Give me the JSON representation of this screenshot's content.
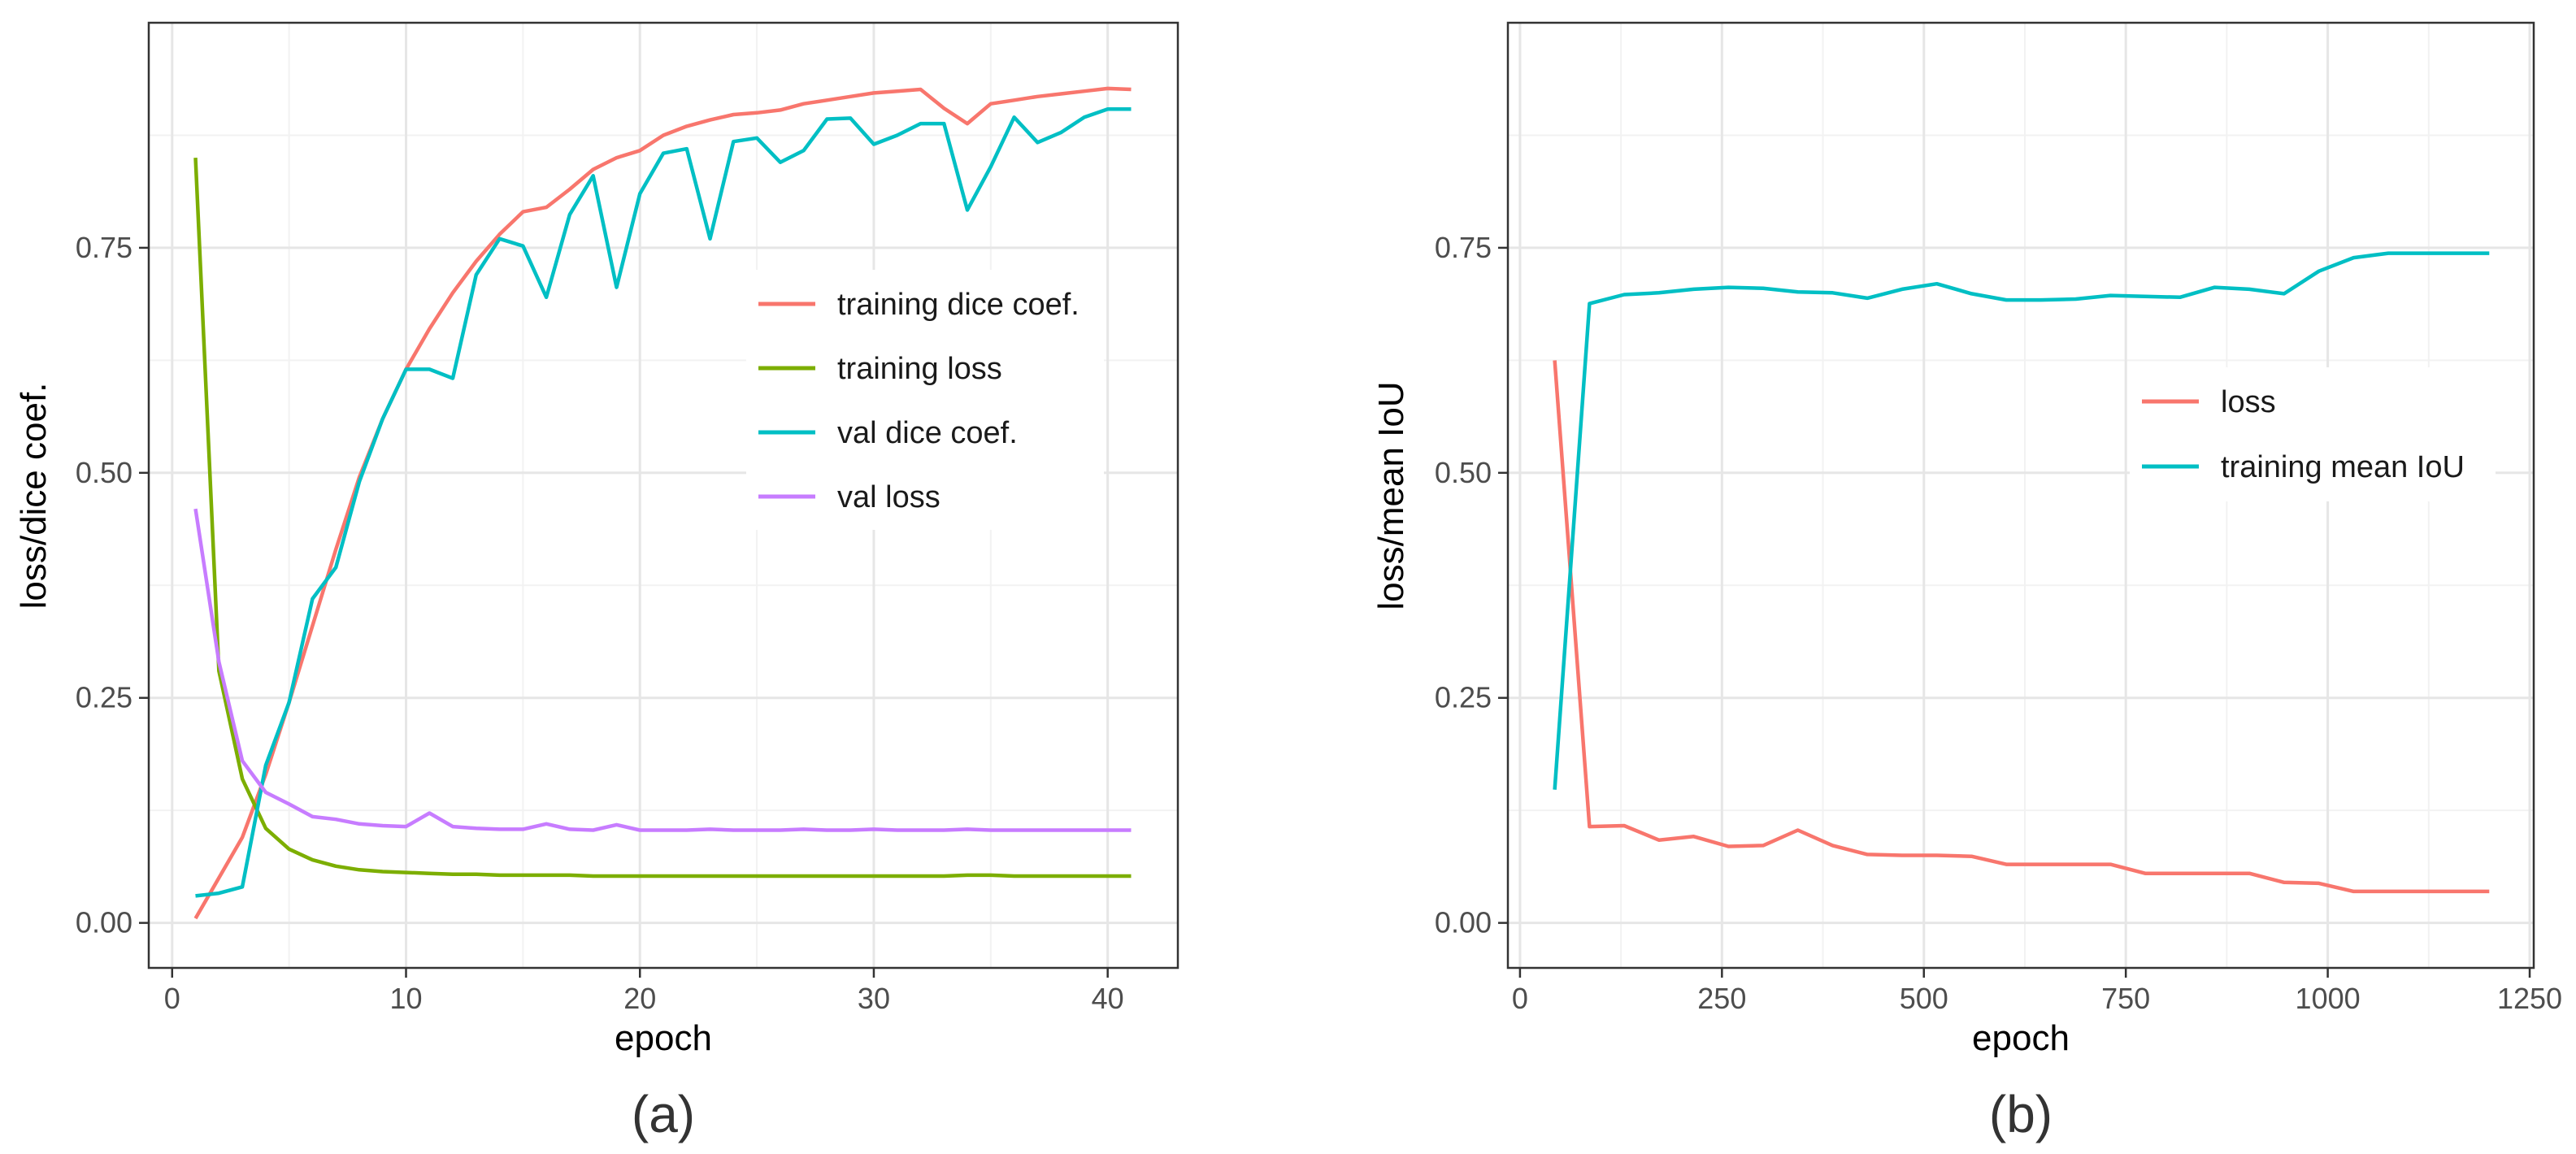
{
  "chart_data": [
    {
      "type": "line",
      "caption": "(a)",
      "xlabel": "epoch",
      "ylabel": "loss/dice coef.",
      "xlim": [
        -1,
        43
      ],
      "ylim": [
        -0.05,
        1.0
      ],
      "xticks": [
        0,
        10,
        20,
        30,
        40
      ],
      "xtick_labels": [
        "0",
        "10",
        "20",
        "30",
        "40"
      ],
      "yticks": [
        0.0,
        0.25,
        0.5,
        0.75
      ],
      "ytick_labels": [
        "0.00",
        "0.25",
        "0.50",
        "0.75"
      ],
      "legend_position": "center-right",
      "x": [
        1,
        2,
        3,
        4,
        5,
        6,
        7,
        8,
        9,
        10,
        11,
        12,
        13,
        14,
        15,
        16,
        17,
        18,
        19,
        20,
        21,
        22,
        23,
        24,
        25,
        26,
        27,
        28,
        29,
        30,
        31,
        32,
        33,
        34,
        35,
        36,
        37,
        38,
        39,
        40,
        41
      ],
      "series": [
        {
          "name": "training dice coef.",
          "color": "#F8766D",
          "values": [
            0.005,
            0.05,
            0.095,
            0.165,
            0.245,
            0.33,
            0.415,
            0.495,
            0.56,
            0.615,
            0.66,
            0.7,
            0.735,
            0.765,
            0.79,
            0.795,
            0.815,
            0.837,
            0.85,
            0.858,
            0.875,
            0.885,
            0.892,
            0.898,
            0.9,
            0.903,
            0.91,
            0.914,
            0.918,
            0.922,
            0.924,
            0.926,
            0.905,
            0.888,
            0.91,
            0.914,
            0.918,
            0.921,
            0.924,
            0.927,
            0.926
          ]
        },
        {
          "name": "training loss",
          "color": "#7CAE00",
          "values": [
            0.85,
            0.28,
            0.16,
            0.105,
            0.082,
            0.07,
            0.063,
            0.059,
            0.057,
            0.056,
            0.055,
            0.054,
            0.054,
            0.053,
            0.053,
            0.053,
            0.053,
            0.052,
            0.052,
            0.052,
            0.052,
            0.052,
            0.052,
            0.052,
            0.052,
            0.052,
            0.052,
            0.052,
            0.052,
            0.052,
            0.052,
            0.052,
            0.052,
            0.053,
            0.053,
            0.052,
            0.052,
            0.052,
            0.052,
            0.052,
            0.052
          ]
        },
        {
          "name": "val dice coef.",
          "color": "#00BFC4",
          "values": [
            0.03,
            0.033,
            0.04,
            0.175,
            0.245,
            0.36,
            0.395,
            0.49,
            0.56,
            0.615,
            0.615,
            0.605,
            0.72,
            0.76,
            0.752,
            0.695,
            0.787,
            0.83,
            0.706,
            0.81,
            0.855,
            0.86,
            0.76,
            0.868,
            0.872,
            0.845,
            0.858,
            0.893,
            0.894,
            0.865,
            0.875,
            0.888,
            0.888,
            0.792,
            0.84,
            0.895,
            0.867,
            0.878,
            0.895,
            0.904,
            0.904
          ]
        },
        {
          "name": "val loss",
          "color": "#C77CFF",
          "values": [
            0.46,
            0.29,
            0.18,
            0.145,
            0.132,
            0.118,
            0.115,
            0.11,
            0.108,
            0.107,
            0.122,
            0.107,
            0.105,
            0.104,
            0.104,
            0.11,
            0.104,
            0.103,
            0.109,
            0.103,
            0.103,
            0.103,
            0.104,
            0.103,
            0.103,
            0.103,
            0.104,
            0.103,
            0.103,
            0.104,
            0.103,
            0.103,
            0.103,
            0.104,
            0.103,
            0.103,
            0.103,
            0.103,
            0.103,
            0.103,
            0.103
          ]
        }
      ]
    },
    {
      "type": "line",
      "caption": "(b)",
      "xlabel": "epoch",
      "ylabel": "loss/mean IoU",
      "xlim": [
        -15,
        1255
      ],
      "ylim": [
        -0.05,
        1.0
      ],
      "xticks": [
        0,
        250,
        500,
        750,
        1000,
        1250
      ],
      "xtick_labels": [
        "0",
        "250",
        "500",
        "750",
        "1000",
        "1250"
      ],
      "yticks": [
        0.0,
        0.25,
        0.5,
        0.75
      ],
      "ytick_labels": [
        "0.00",
        "0.25",
        "0.50",
        "0.75"
      ],
      "legend_position": "center-right",
      "x": [
        43,
        86,
        129,
        172,
        215,
        258,
        301,
        344,
        387,
        430,
        473,
        516,
        559,
        602,
        645,
        688,
        731,
        774,
        817,
        860,
        903,
        946,
        989,
        1032,
        1075,
        1118,
        1161,
        1200
      ],
      "series": [
        {
          "name": "loss",
          "color": "#F8766D",
          "values": [
            0.625,
            0.107,
            0.108,
            0.092,
            0.096,
            0.085,
            0.086,
            0.103,
            0.086,
            0.076,
            0.075,
            0.075,
            0.074,
            0.065,
            0.065,
            0.065,
            0.065,
            0.055,
            0.055,
            0.055,
            0.055,
            0.045,
            0.044,
            0.035,
            0.035,
            0.035,
            0.035,
            0.035
          ]
        },
        {
          "name": "training mean IoU",
          "color": "#00BFC4",
          "values": [
            0.148,
            0.688,
            0.698,
            0.7,
            0.704,
            0.706,
            0.705,
            0.701,
            0.7,
            0.694,
            0.704,
            0.71,
            0.699,
            0.692,
            0.692,
            0.693,
            0.697,
            0.696,
            0.695,
            0.706,
            0.704,
            0.699,
            0.724,
            0.739,
            0.744,
            0.744,
            0.744,
            0.744
          ]
        }
      ]
    }
  ]
}
